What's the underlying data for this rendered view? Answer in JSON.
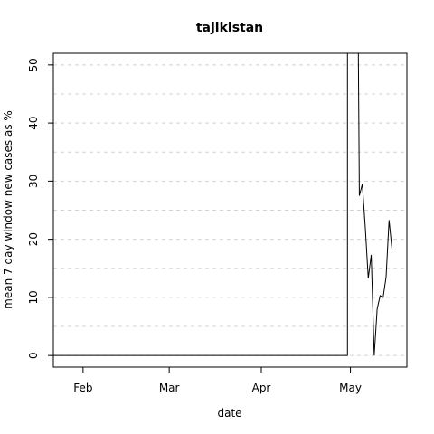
{
  "chart_data": {
    "type": "line",
    "title": "tajikistan",
    "xlabel": "date",
    "ylabel": "mean  7  day window new cases as %",
    "x_ticks": [
      "Feb",
      "Mar",
      "Apr",
      "May"
    ],
    "x_tick_dates": [
      "2020-02-01",
      "2020-03-01",
      "2020-04-01",
      "2020-05-01"
    ],
    "xlim": [
      "2020-01-22",
      "2020-05-20"
    ],
    "y_ticks": [
      0,
      10,
      20,
      30,
      40,
      50
    ],
    "ylim": [
      -2,
      52
    ],
    "grid": true,
    "grid_color": "#d3d3d3",
    "line_color": "#000000",
    "series": [
      {
        "points": [
          {
            "x": "2020-01-22",
            "y": 0
          },
          {
            "x": "2020-04-30",
            "y": 0
          },
          {
            "x": "2020-04-30",
            "y": 100
          },
          {
            "x": "2020-05-03",
            "y": 100
          },
          {
            "x": "2020-05-04",
            "y": 27.5
          },
          {
            "x": "2020-05-05",
            "y": 29.5
          },
          {
            "x": "2020-05-06",
            "y": 22
          },
          {
            "x": "2020-05-07",
            "y": 13.3
          },
          {
            "x": "2020-05-08",
            "y": 17.3
          },
          {
            "x": "2020-05-09",
            "y": 0
          },
          {
            "x": "2020-05-10",
            "y": 8
          },
          {
            "x": "2020-05-11",
            "y": 10.3
          },
          {
            "x": "2020-05-12",
            "y": 10
          },
          {
            "x": "2020-05-13",
            "y": 13.5
          },
          {
            "x": "2020-05-14",
            "y": 23.3
          },
          {
            "x": "2020-05-15",
            "y": 18.2
          }
        ]
      }
    ]
  }
}
